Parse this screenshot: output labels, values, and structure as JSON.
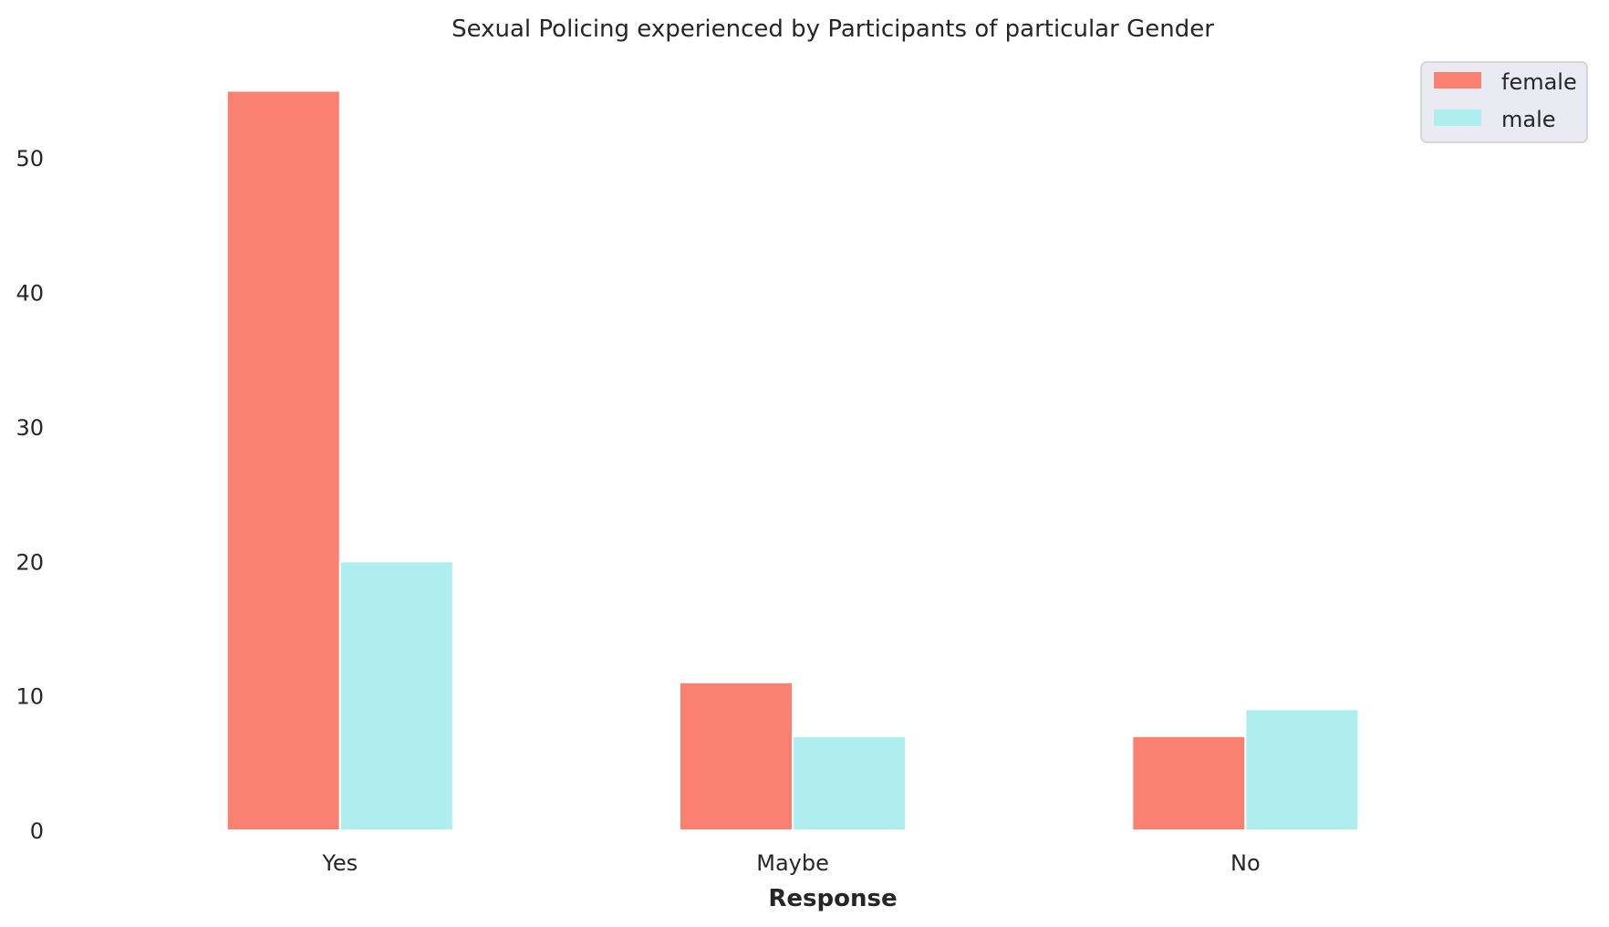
{
  "chart_data": {
    "type": "bar",
    "title": "Sexual Policing experienced by Participants of particular Gender",
    "xlabel": "Response",
    "ylabel": "",
    "categories": [
      "Yes",
      "Maybe",
      "No"
    ],
    "series": [
      {
        "name": "female",
        "color": "#fa8072",
        "values": [
          55,
          11,
          7
        ]
      },
      {
        "name": "male",
        "color": "#afeeee",
        "values": [
          20,
          7,
          9
        ]
      }
    ],
    "yticks": [
      0,
      10,
      20,
      30,
      40,
      50
    ],
    "ylim": [
      0,
      57.75
    ],
    "grid": false,
    "legend": "top-right"
  }
}
